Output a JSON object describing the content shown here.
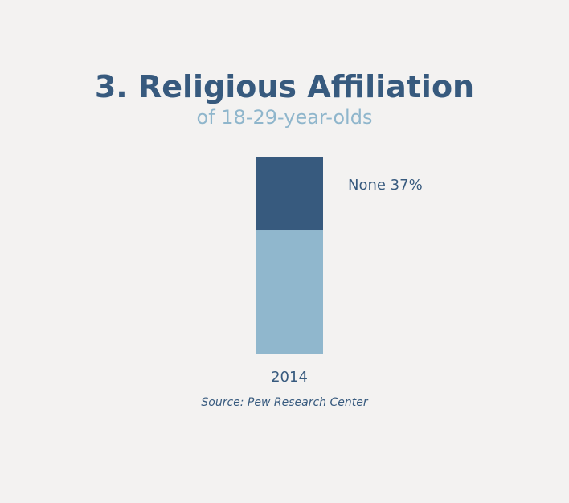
{
  "title": "3. Religious Affiliation",
  "subtitle": "of 18-29-year-olds",
  "source": "Source: Pew Research Center",
  "colors": {
    "background": "#f3f2f1",
    "title": "#375a7e",
    "subtitle": "#8fb6cc",
    "segment_none": "#375a7e",
    "segment_rest": "#90b7cd"
  },
  "chart_data": {
    "type": "bar",
    "stacked": true,
    "categories": [
      "2014"
    ],
    "series": [
      {
        "values": [
          63
        ]
      },
      {
        "name": "None",
        "values": [
          37
        ],
        "label": "None 37%"
      }
    ],
    "ylim": [
      0,
      100
    ],
    "grid": false,
    "legend": "none"
  }
}
